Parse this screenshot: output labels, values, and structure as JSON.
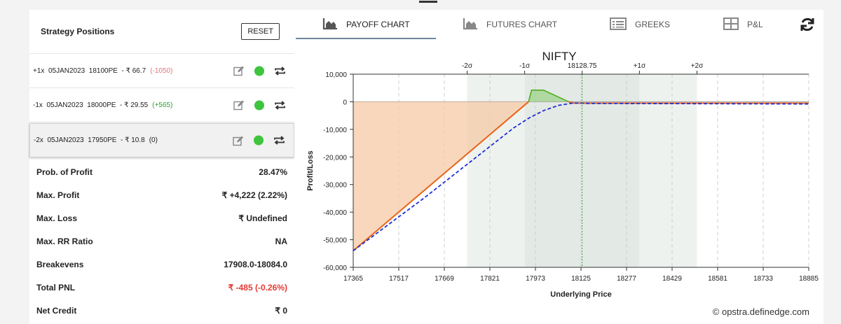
{
  "left_panel": {
    "title": "Strategy Positions",
    "reset_label": "RESET",
    "positions": [
      {
        "text": "+1x  05JAN2023  18100PE  - ₹ 66.7",
        "pnl": "(-1050)",
        "pnl_class": "neg"
      },
      {
        "text": "-1x  05JAN2023  18000PE  - ₹ 29.55",
        "pnl": "(+565)",
        "pnl_class": "pos"
      },
      {
        "text": "-2x  05JAN2023  17950PE  - ₹ 10.8",
        "pnl": "(0)",
        "pnl_class": "zero"
      }
    ],
    "stats": [
      {
        "label": "Prob. of Profit",
        "value": "28.47%"
      },
      {
        "label": "Max. Profit",
        "value": "₹ +4,222 (2.22%)"
      },
      {
        "label": "Max. Loss",
        "value": "₹ Undefined"
      },
      {
        "label": "Max. RR Ratio",
        "value": "NA"
      },
      {
        "label": "Breakevens",
        "value": "17908.0-18084.0"
      },
      {
        "label": "Total PNL",
        "value": "₹ -485 (-0.26%)"
      },
      {
        "label": "Net Credit",
        "value": "₹ 0"
      }
    ]
  },
  "tabs": [
    {
      "label": "PAYOFF CHART",
      "icon": "area-chart-icon",
      "active": true
    },
    {
      "label": "FUTURES CHART",
      "icon": "area-chart-icon",
      "active": false
    },
    {
      "label": "GREEKS",
      "icon": "list-icon",
      "active": false
    },
    {
      "label": "P&L",
      "icon": "table-icon",
      "active": false
    }
  ],
  "refresh_icon": "refresh-icon",
  "copyright": "© opstra.definedge.com",
  "colors": {
    "expiry_line": "#e8651a",
    "today_line": "#1f2fd6",
    "profit_fill": "#9fd18b",
    "loss_fill": "#f6c9a6",
    "profit_line": "#4caf1f",
    "dot": "#3ec43e",
    "negative_text": "#e53935",
    "positive_text": "#2e9e2e"
  },
  "chart_data": {
    "type": "line",
    "title": "NIFTY",
    "xlabel": "Underlying Price",
    "ylabel": "Profit/Loss",
    "xlim": [
      17365,
      18885
    ],
    "ylim": [
      -60000,
      10000
    ],
    "x_ticks": [
      17365,
      17517,
      17669,
      17821,
      17973,
      18125,
      18277,
      18429,
      18581,
      18733,
      18885
    ],
    "y_ticks": [
      10000,
      0,
      -10000,
      -20000,
      -30000,
      -40000,
      -50000,
      -60000
    ],
    "y_tick_labels": [
      "10,000",
      "0",
      "-10,000",
      "-20,000",
      "-30,000",
      "-40,000",
      "-50,000",
      "-60,000"
    ],
    "sigma_markers": [
      {
        "label": "-2σ",
        "x": 17745
      },
      {
        "label": "-1σ",
        "x": 17937
      },
      {
        "label": "18128.75",
        "x": 18128.75
      },
      {
        "label": "+1σ",
        "x": 18320
      },
      {
        "label": "+2σ",
        "x": 18512
      }
    ],
    "current_price": 18128.75,
    "series": [
      {
        "name": "",
        "style": "solid",
        "points": [
          [
            17365,
            -54000
          ],
          [
            17950,
            0
          ],
          [
            17960,
            4222
          ],
          [
            18000,
            4222
          ],
          [
            18100,
            -500
          ],
          [
            18885,
            -500
          ]
        ]
      },
      {
        "name": "",
        "style": "dashed",
        "points": [
          [
            17365,
            -54000
          ],
          [
            17600,
            -35000
          ],
          [
            17800,
            -18000
          ],
          [
            17900,
            -9500
          ],
          [
            17950,
            -6000
          ],
          [
            18000,
            -3200
          ],
          [
            18050,
            -1300
          ],
          [
            18100,
            -450
          ],
          [
            18150,
            -600
          ],
          [
            18885,
            -800
          ]
        ]
      }
    ]
  }
}
